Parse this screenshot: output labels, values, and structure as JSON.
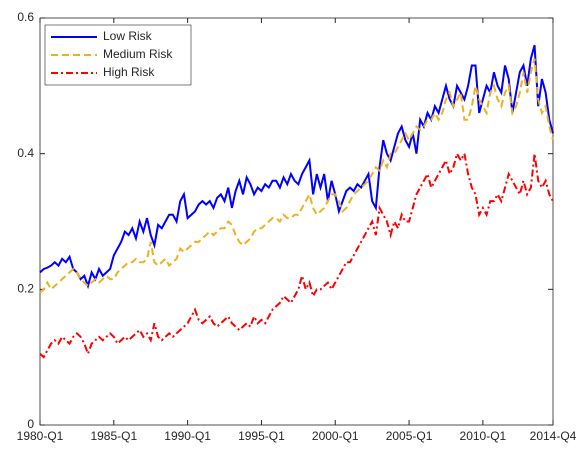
{
  "chart_data": {
    "type": "line",
    "categories": [
      "1980-Q1",
      null,
      null,
      null,
      null,
      null,
      null,
      null,
      null,
      null,
      null,
      null,
      null,
      null,
      null,
      null,
      null,
      null,
      null,
      null,
      "1985-Q1",
      null,
      null,
      null,
      null,
      null,
      null,
      null,
      null,
      null,
      null,
      null,
      null,
      null,
      null,
      null,
      null,
      null,
      null,
      null,
      "1990-Q1",
      null,
      null,
      null,
      null,
      null,
      null,
      null,
      null,
      null,
      null,
      null,
      null,
      null,
      null,
      null,
      null,
      null,
      null,
      null,
      "1995-Q1",
      null,
      null,
      null,
      null,
      null,
      null,
      null,
      null,
      null,
      null,
      null,
      null,
      null,
      null,
      null,
      null,
      null,
      null,
      null,
      "2000-Q1",
      null,
      null,
      null,
      null,
      null,
      null,
      null,
      null,
      null,
      null,
      null,
      null,
      null,
      null,
      null,
      null,
      null,
      null,
      null,
      "2005-Q1",
      null,
      null,
      null,
      null,
      null,
      null,
      null,
      null,
      null,
      null,
      null,
      null,
      null,
      null,
      null,
      null,
      null,
      null,
      null,
      "2010-Q1",
      null,
      null,
      null,
      null,
      null,
      null,
      null,
      null,
      null,
      null,
      null,
      null,
      null,
      null,
      null,
      null,
      null,
      null,
      "2014-Q4"
    ],
    "series": [
      {
        "name": "Low Risk",
        "color": "#0000ff",
        "line_style": "solid",
        "values": [
          0.225,
          0.23,
          0.232,
          0.235,
          0.24,
          0.235,
          0.245,
          0.24,
          0.248,
          0.23,
          0.225,
          0.215,
          0.22,
          0.205,
          0.225,
          0.215,
          0.23,
          0.22,
          0.225,
          0.23,
          0.25,
          0.26,
          0.27,
          0.285,
          0.28,
          0.29,
          0.275,
          0.3,
          0.285,
          0.305,
          0.28,
          0.265,
          0.295,
          0.29,
          0.3,
          0.31,
          0.31,
          0.3,
          0.33,
          0.34,
          0.305,
          0.31,
          0.315,
          0.325,
          0.33,
          0.325,
          0.33,
          0.32,
          0.335,
          0.34,
          0.33,
          0.35,
          0.32,
          0.345,
          0.36,
          0.34,
          0.365,
          0.355,
          0.34,
          0.35,
          0.345,
          0.355,
          0.35,
          0.36,
          0.36,
          0.35,
          0.365,
          0.355,
          0.37,
          0.36,
          0.355,
          0.37,
          0.38,
          0.39,
          0.34,
          0.37,
          0.35,
          0.37,
          0.33,
          0.36,
          0.34,
          0.315,
          0.33,
          0.345,
          0.35,
          0.345,
          0.355,
          0.35,
          0.36,
          0.37,
          0.33,
          0.32,
          0.38,
          0.42,
          0.4,
          0.39,
          0.41,
          0.43,
          0.44,
          0.42,
          0.41,
          0.43,
          0.4,
          0.45,
          0.44,
          0.46,
          0.45,
          0.47,
          0.46,
          0.48,
          0.5,
          0.48,
          0.47,
          0.5,
          0.49,
          0.48,
          0.5,
          0.53,
          0.53,
          0.46,
          0.48,
          0.5,
          0.49,
          0.52,
          0.5,
          0.49,
          0.53,
          0.51,
          0.46,
          0.49,
          0.52,
          0.53,
          0.5,
          0.54,
          0.56,
          0.47,
          0.51,
          0.49,
          0.45,
          0.43
        ]
      },
      {
        "name": "Medium Risk",
        "color": "#edb120",
        "line_style": "dashed",
        "values": [
          0.195,
          0.2,
          0.21,
          0.2,
          0.205,
          0.21,
          0.215,
          0.22,
          0.225,
          0.23,
          0.225,
          0.215,
          0.21,
          0.205,
          0.21,
          0.215,
          0.21,
          0.215,
          0.22,
          0.215,
          0.215,
          0.225,
          0.23,
          0.235,
          0.24,
          0.24,
          0.245,
          0.24,
          0.24,
          0.245,
          0.27,
          0.24,
          0.235,
          0.24,
          0.245,
          0.235,
          0.24,
          0.245,
          0.26,
          0.255,
          0.26,
          0.265,
          0.27,
          0.27,
          0.275,
          0.28,
          0.285,
          0.28,
          0.285,
          0.29,
          0.29,
          0.3,
          0.295,
          0.28,
          0.27,
          0.265,
          0.27,
          0.275,
          0.285,
          0.29,
          0.29,
          0.295,
          0.3,
          0.305,
          0.305,
          0.3,
          0.31,
          0.305,
          0.305,
          0.31,
          0.31,
          0.32,
          0.33,
          0.34,
          0.32,
          0.31,
          0.315,
          0.32,
          0.33,
          0.34,
          0.34,
          0.33,
          0.315,
          0.32,
          0.33,
          0.34,
          0.345,
          0.35,
          0.355,
          0.36,
          0.37,
          0.38,
          0.375,
          0.39,
          0.38,
          0.4,
          0.4,
          0.41,
          0.42,
          0.43,
          0.42,
          0.43,
          0.44,
          0.435,
          0.44,
          0.45,
          0.45,
          0.46,
          0.45,
          0.46,
          0.48,
          0.49,
          0.47,
          0.48,
          0.49,
          0.45,
          0.45,
          0.47,
          0.5,
          0.48,
          0.47,
          0.46,
          0.49,
          0.5,
          0.48,
          0.47,
          0.49,
          0.5,
          0.46,
          0.47,
          0.49,
          0.52,
          0.49,
          0.52,
          0.54,
          0.48,
          0.46,
          0.47,
          0.44,
          0.42
        ]
      },
      {
        "name": "High Risk",
        "color": "#ff0000",
        "line_style": "dashdot",
        "values": [
          0.105,
          0.1,
          0.11,
          0.12,
          0.125,
          0.12,
          0.13,
          0.125,
          0.12,
          0.13,
          0.135,
          0.13,
          0.12,
          0.105,
          0.12,
          0.125,
          0.13,
          0.125,
          0.13,
          0.135,
          0.13,
          0.12,
          0.125,
          0.13,
          0.125,
          0.13,
          0.135,
          0.14,
          0.13,
          0.135,
          0.125,
          0.15,
          0.13,
          0.125,
          0.13,
          0.135,
          0.13,
          0.135,
          0.14,
          0.145,
          0.15,
          0.16,
          0.17,
          0.155,
          0.15,
          0.155,
          0.16,
          0.15,
          0.145,
          0.15,
          0.155,
          0.16,
          0.15,
          0.145,
          0.14,
          0.145,
          0.15,
          0.145,
          0.16,
          0.15,
          0.155,
          0.15,
          0.16,
          0.17,
          0.175,
          0.18,
          0.19,
          0.185,
          0.18,
          0.19,
          0.2,
          0.22,
          0.2,
          0.21,
          0.19,
          0.2,
          0.2,
          0.205,
          0.21,
          0.2,
          0.21,
          0.22,
          0.23,
          0.24,
          0.24,
          0.25,
          0.26,
          0.27,
          0.28,
          0.29,
          0.3,
          0.28,
          0.32,
          0.31,
          0.3,
          0.28,
          0.3,
          0.29,
          0.31,
          0.3,
          0.3,
          0.32,
          0.34,
          0.35,
          0.36,
          0.37,
          0.35,
          0.36,
          0.37,
          0.38,
          0.39,
          0.37,
          0.38,
          0.4,
          0.39,
          0.4,
          0.37,
          0.35,
          0.34,
          0.31,
          0.32,
          0.31,
          0.33,
          0.33,
          0.34,
          0.33,
          0.35,
          0.37,
          0.36,
          0.35,
          0.34,
          0.36,
          0.34,
          0.35,
          0.4,
          0.36,
          0.35,
          0.36,
          0.34,
          0.33
        ]
      }
    ],
    "ylim": [
      0,
      0.6
    ],
    "yticks": [
      0,
      0.2,
      0.4,
      0.6
    ],
    "grid": false,
    "legend": "top-left"
  }
}
